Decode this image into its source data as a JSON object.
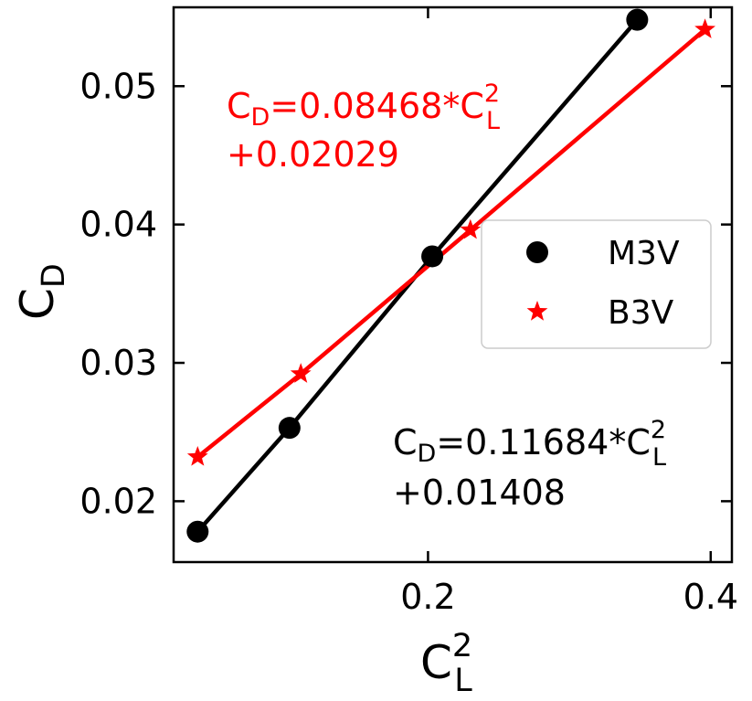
{
  "chart_data": {
    "type": "scatter",
    "xlabel": "C",
    "xlabel_sub": "L",
    "xlabel_sup": "2",
    "ylabel": "C",
    "ylabel_sub": "D",
    "xlim": [
      0.02,
      0.415
    ],
    "ylim": [
      0.0156,
      0.0557
    ],
    "xticks": [
      0.2,
      0.4
    ],
    "xtick_labels": [
      "0.2",
      "0.4"
    ],
    "yticks": [
      0.02,
      0.03,
      0.04,
      0.05
    ],
    "ytick_labels": [
      "0.02",
      "0.03",
      "0.04",
      "0.05"
    ],
    "grid": false,
    "legend_position": "center-right",
    "series": [
      {
        "name": "M3V",
        "color": "#000000",
        "marker": "circle",
        "x": [
          0.037,
          0.102,
          0.203,
          0.348
        ],
        "y": [
          0.0178,
          0.0253,
          0.0377,
          0.0548
        ],
        "fit": {
          "slope": 0.11684,
          "intercept": 0.01408
        },
        "equation": {
          "prefix": "C",
          "prefix_sub": "D",
          "body": "=0.11684*C",
          "sup": "2",
          "sub": "L",
          "line2": "+0.01408"
        }
      },
      {
        "name": "B3V",
        "color": "#ff0000",
        "marker": "star",
        "x": [
          0.037,
          0.11,
          0.23,
          0.396
        ],
        "y": [
          0.0232,
          0.0292,
          0.0396,
          0.0541
        ],
        "fit": {
          "slope": 0.08468,
          "intercept": 0.02029
        },
        "equation": {
          "prefix": "C",
          "prefix_sub": "D",
          "body": "=0.08468*C",
          "sup": "2",
          "sub": "L",
          "line2": "+0.02029"
        }
      }
    ]
  }
}
